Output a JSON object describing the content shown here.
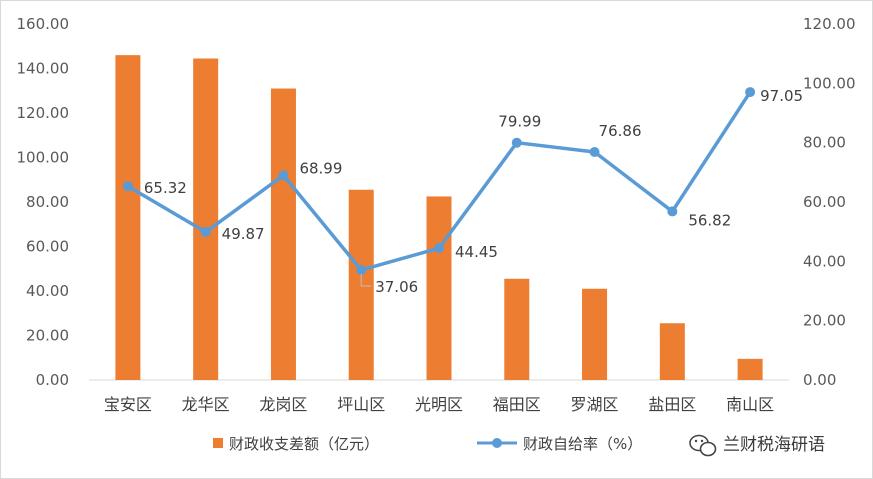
{
  "chart_data": {
    "type": "bar",
    "categories": [
      "宝安区",
      "龙华区",
      "龙岗区",
      "坪山区",
      "光明区",
      "福田区",
      "罗湖区",
      "盐田区",
      "南山区"
    ],
    "series": [
      {
        "name": "财政收支差额（亿元）",
        "type": "bar",
        "axis": "left",
        "color": "#ed7d31",
        "values": [
          146.0,
          144.5,
          131.0,
          85.5,
          82.5,
          45.5,
          41.0,
          25.5,
          9.5
        ]
      },
      {
        "name": "财政自给率（%）",
        "type": "line",
        "axis": "right",
        "color": "#5b9bd5",
        "values": [
          65.32,
          49.87,
          68.99,
          37.06,
          44.45,
          79.99,
          76.86,
          56.82,
          97.05
        ],
        "labels": [
          "65.32",
          "49.87",
          "68.99",
          "37.06",
          "44.45",
          "79.99",
          "76.86",
          "56.82",
          "97.05"
        ]
      }
    ],
    "y_left": {
      "ylim": [
        0,
        160
      ],
      "ticks": [
        "0.00",
        "20.00",
        "40.00",
        "60.00",
        "80.00",
        "100.00",
        "120.00",
        "140.00",
        "160.00"
      ]
    },
    "y_right": {
      "ylim": [
        0,
        120
      ],
      "ticks": [
        "0.00",
        "20.00",
        "40.00",
        "60.00",
        "80.00",
        "100.00",
        "120.00"
      ]
    },
    "grid": false,
    "legend": "bottom"
  },
  "watermark": {
    "text": "兰财税海研语",
    "icon": "wechat-icon"
  }
}
